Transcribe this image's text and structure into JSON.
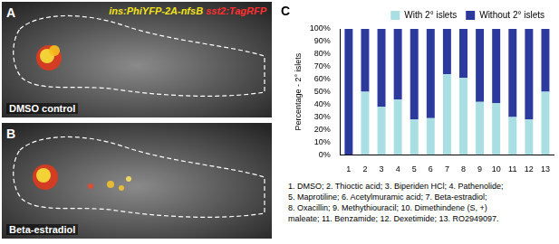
{
  "chart_data": {
    "type": "bar",
    "stacked": true,
    "legend": "top",
    "y_label": "Percentage - 2° islets",
    "categories": [
      "1",
      "2",
      "3",
      "4",
      "5",
      "6",
      "7",
      "8",
      "9",
      "10",
      "11",
      "12",
      "13"
    ],
    "series": [
      {
        "name": "With 2° islets",
        "color": "#a9dfe3",
        "values": [
          0,
          50,
          38,
          44,
          28,
          29,
          64,
          61,
          42,
          41,
          30,
          28,
          50
        ]
      },
      {
        "name": "Without 2° islets",
        "color": "#2b3a9c",
        "values": [
          100,
          50,
          62,
          56,
          72,
          71,
          36,
          39,
          58,
          59,
          70,
          72,
          50
        ]
      }
    ],
    "ylim": [
      0,
      100
    ],
    "yticks": [
      {
        "value": 0,
        "label": "0%"
      },
      {
        "value": 10,
        "label": "10%"
      },
      {
        "value": 20,
        "label": "20%"
      },
      {
        "value": 30,
        "label": "30%"
      },
      {
        "value": 40,
        "label": "40%"
      },
      {
        "value": 50,
        "label": "50%"
      },
      {
        "value": 60,
        "label": "60%"
      },
      {
        "value": 70,
        "label": "70%"
      },
      {
        "value": 80,
        "label": "80%"
      },
      {
        "value": 90,
        "label": "90%"
      },
      {
        "value": 100,
        "label": "100%"
      }
    ],
    "grid": false
  },
  "panel_letters": [
    "A",
    "B",
    "C"
  ],
  "panels": [
    {
      "labels": [
        {
          "text": "ins:PhiYFP-2A-nfsB",
          "color": "#f2e21a"
        },
        {
          "text": "sst2:TagRFP",
          "color": "#ff3030"
        }
      ],
      "caption": "DMSO control"
    },
    {
      "caption": "Beta-estradiol"
    }
  ],
  "compound_key": [
    "1. DMSO; 2. Thioctic acid; 3. Biperiden HCl; 4. Pathenolide;",
    "5. Maprotiline; 6. Acetylmuramic acid; 7. Beta-estradiol;",
    "8. Oxacillin; 9. Methythiouracil; 10. Dimethindene (S, +)",
    "maleate; 11. Benzamide; 12. Dexetimide; 13. RO2949097."
  ]
}
